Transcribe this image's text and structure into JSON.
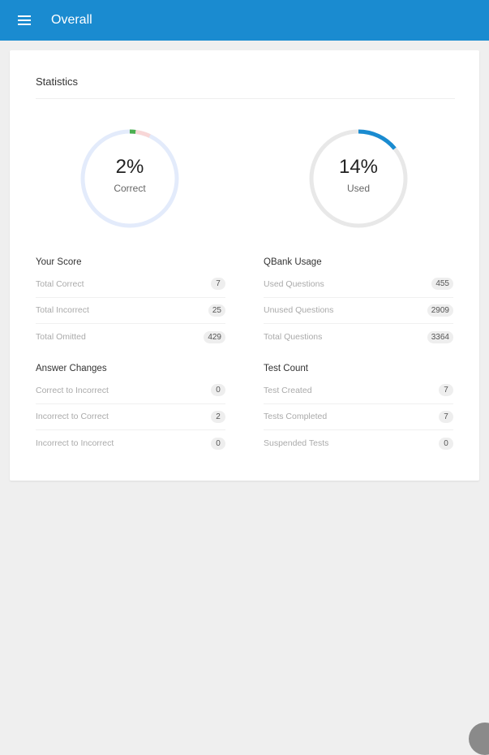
{
  "header": {
    "title": "Overall",
    "menu_icon": "hamburger-icon"
  },
  "card": {
    "title": "Statistics"
  },
  "rings": [
    {
      "value": "2%",
      "label": "Correct",
      "segments": [
        {
          "fraction": 0.02,
          "color": "#4caf50"
        },
        {
          "fraction": 0.05,
          "color": "#f8d7d7"
        }
      ],
      "track": "#e3ebfb"
    },
    {
      "value": "14%",
      "label": "Used",
      "segments": [
        {
          "fraction": 0.14,
          "color": "#1a8bd0"
        }
      ],
      "track": "#e8e8e8"
    }
  ],
  "sections": [
    {
      "title": "Your Score",
      "rows": [
        {
          "label": "Total Correct",
          "value": "7"
        },
        {
          "label": "Total Incorrect",
          "value": "25"
        },
        {
          "label": "Total Omitted",
          "value": "429"
        }
      ]
    },
    {
      "title": "QBank Usage",
      "rows": [
        {
          "label": "Used Questions",
          "value": "455"
        },
        {
          "label": "Unused Questions",
          "value": "2909"
        },
        {
          "label": "Total Questions",
          "value": "3364"
        }
      ]
    },
    {
      "title": "Answer Changes",
      "rows": [
        {
          "label": "Correct to Incorrect",
          "value": "0"
        },
        {
          "label": "Incorrect to Correct",
          "value": "2"
        },
        {
          "label": "Incorrect to Incorrect",
          "value": "0"
        }
      ]
    },
    {
      "title": "Test Count",
      "rows": [
        {
          "label": "Test Created",
          "value": "7"
        },
        {
          "label": "Tests Completed",
          "value": "7"
        },
        {
          "label": "Suspended Tests",
          "value": "0"
        }
      ]
    }
  ]
}
